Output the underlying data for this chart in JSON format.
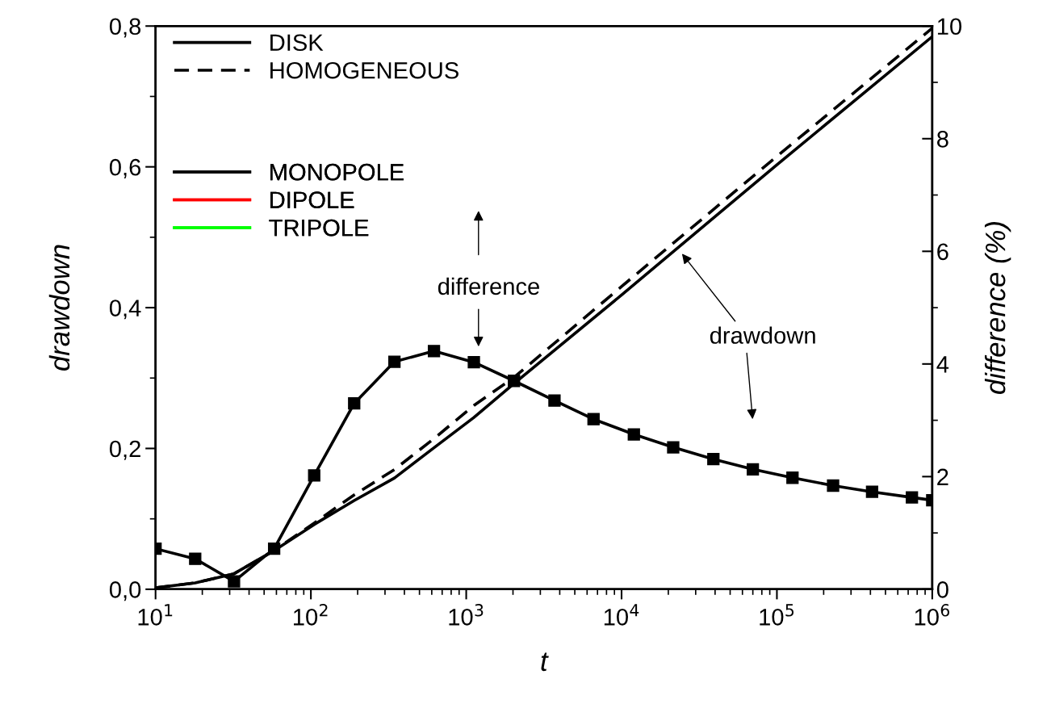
{
  "chart_data": {
    "type": "line",
    "xlabel": "t",
    "ylabel": "drawdown",
    "y2label": "difference (%)",
    "log": "x",
    "xlim": [
      10,
      1000000
    ],
    "xticks": [
      {
        "value": 10,
        "label": "10$^{1}$"
      },
      {
        "value": 100,
        "label": "10$^{2}$"
      },
      {
        "value": 1000,
        "label": "10$^{3}$"
      },
      {
        "value": 10000,
        "label": "10$^{4}$"
      },
      {
        "value": 100000,
        "label": "10$^{5}$"
      },
      {
        "value": 1000000,
        "label": "10$^{6}$"
      }
    ],
    "ylim": [
      0,
      0.8
    ],
    "yticks": [
      {
        "value": 0,
        "label": "0,0"
      },
      {
        "value": 0.2,
        "label": "0,2"
      },
      {
        "value": 0.4,
        "label": "0,4"
      },
      {
        "value": 0.6,
        "label": "0,6"
      },
      {
        "value": 0.8,
        "label": "0,8"
      }
    ],
    "y2lim": [
      0,
      10
    ],
    "y2ticks": [
      0,
      2,
      4,
      6,
      8,
      10
    ],
    "grid": false,
    "legend": "top left",
    "series": [
      {
        "name": "DISK",
        "color": "#000000",
        "line_style": "solid",
        "marker": "none",
        "x": [
          10,
          18,
          32,
          58,
          105,
          190,
          345,
          620,
          1120,
          2030,
          10000,
          100000,
          1000000
        ],
        "values": [
          0.002,
          0.009,
          0.022,
          0.055,
          0.092,
          0.126,
          0.158,
          0.201,
          0.244,
          0.292,
          0.418,
          0.603,
          0.785
        ]
      },
      {
        "name": "HOMOGENEOUS",
        "color": "#000000",
        "line_style": "dashed",
        "marker": "none",
        "x": [
          10,
          18,
          32,
          58,
          105,
          190,
          345,
          620,
          1120,
          2030,
          10000,
          100000,
          1000000
        ],
        "values": [
          0.002,
          0.009,
          0.022,
          0.055,
          0.094,
          0.134,
          0.17,
          0.214,
          0.261,
          0.301,
          0.43,
          0.615,
          0.797
        ]
      },
      {
        "name": "MONOPOLE",
        "color": "#000000",
        "line_style": "solid",
        "marker": "none"
      },
      {
        "name": "DIPOLE",
        "color": "#ff0000",
        "line_style": "solid",
        "marker": "none"
      },
      {
        "name": "TRIPOLE",
        "color": "#00ff00",
        "line_style": "solid",
        "marker": "none"
      },
      {
        "color": "#000000",
        "axis": "y2",
        "line_style": "solid",
        "marker": "square",
        "x": [
          10,
          18,
          32,
          58,
          105,
          190,
          345,
          620,
          1120,
          2030,
          3700,
          6600,
          12000,
          21500,
          39000,
          70000,
          126000,
          230000,
          410000,
          740000,
          1000000
        ],
        "values": [
          0.72,
          0.54,
          0.14,
          0.72,
          2.02,
          3.3,
          4.04,
          4.23,
          4.03,
          3.7,
          3.35,
          3.02,
          2.75,
          2.52,
          2.31,
          2.13,
          1.98,
          1.84,
          1.73,
          1.63,
          1.58
        ]
      }
    ],
    "annotations": [
      "difference",
      "drawdown"
    ]
  }
}
